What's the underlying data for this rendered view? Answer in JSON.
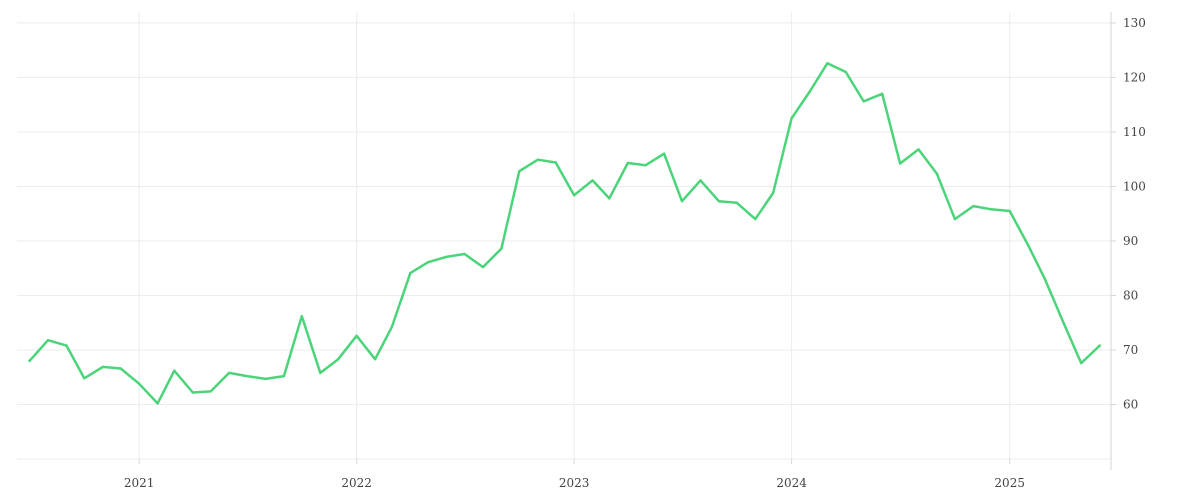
{
  "chart_data": {
    "type": "line",
    "title": "",
    "xlabel": "",
    "ylabel": "",
    "x_tick_labels": [
      "2021",
      "2022",
      "2023",
      "2024",
      "2025"
    ],
    "y_tick_labels": [
      "60",
      "70",
      "80",
      "90",
      "100",
      "110",
      "120",
      "130"
    ],
    "ylim": [
      50,
      132
    ],
    "xlim": [
      "2020-06-10",
      "2025-06-20"
    ],
    "y_axis_side": "right",
    "grid": true,
    "legend": "none",
    "series": [
      {
        "color": "#4cd47a",
        "x": [
          "2020-07-01",
          "2020-08-01",
          "2020-09-01",
          "2020-10-01",
          "2020-11-01",
          "2020-12-01",
          "2021-01-01",
          "2021-02-01",
          "2021-03-01",
          "2021-04-01",
          "2021-05-01",
          "2021-06-01",
          "2021-07-01",
          "2021-08-01",
          "2021-09-01",
          "2021-10-01",
          "2021-11-01",
          "2021-12-01",
          "2022-01-01",
          "2022-02-01",
          "2022-03-01",
          "2022-04-01",
          "2022-05-01",
          "2022-06-01",
          "2022-07-01",
          "2022-08-01",
          "2022-09-01",
          "2022-10-01",
          "2022-11-01",
          "2022-12-01",
          "2023-01-01",
          "2023-02-01",
          "2023-03-01",
          "2023-04-01",
          "2023-05-01",
          "2023-06-01",
          "2023-07-01",
          "2023-08-01",
          "2023-09-01",
          "2023-10-01",
          "2023-11-01",
          "2023-12-01",
          "2024-01-01",
          "2024-02-01",
          "2024-03-01",
          "2024-04-01",
          "2024-05-01",
          "2024-06-01",
          "2024-07-01",
          "2024-08-01",
          "2024-09-01",
          "2024-10-01",
          "2024-11-01",
          "2024-12-01",
          "2025-01-01",
          "2025-02-01",
          "2025-03-01",
          "2025-04-01",
          "2025-05-01",
          "2025-06-01"
        ],
        "values": [
          68.0,
          71.8,
          70.8,
          64.8,
          66.9,
          66.6,
          63.8,
          60.2,
          66.2,
          62.2,
          62.4,
          65.8,
          65.2,
          64.7,
          65.2,
          76.2,
          65.8,
          68.3,
          72.6,
          68.3,
          74.2,
          84.1,
          86.1,
          87.1,
          87.6,
          85.2,
          88.6,
          102.8,
          104.9,
          104.4,
          98.4,
          101.1,
          97.8,
          104.3,
          103.9,
          106.0,
          97.3,
          101.1,
          97.3,
          97.0,
          94.0,
          98.8,
          112.5,
          117.5,
          122.6,
          121.0,
          115.6,
          117.0,
          104.2,
          106.8,
          102.3,
          94.0,
          96.4,
          95.8,
          95.5,
          89.2,
          83.0,
          75.1,
          67.6,
          70.8
        ]
      }
    ]
  }
}
